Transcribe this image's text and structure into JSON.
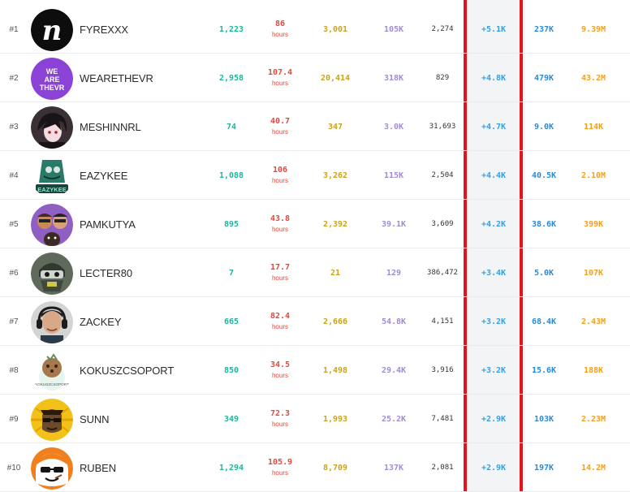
{
  "colors": {
    "followers": "#1fb59a",
    "hours": "#e5473a",
    "peak": "#c9a41a",
    "avg": "#a18dd1",
    "gain": "#3a9fe0",
    "follow_total": "#2c8ad5",
    "views": "#f0a020",
    "highlight": "#e1151c"
  },
  "hours_label": "hours",
  "rows": [
    {
      "rank": "#1",
      "name": "FYREXXX",
      "avatar_icon": "fyrexxx-logo-icon",
      "followers": "1,223",
      "hours": "86",
      "peak": "3,001",
      "avg": "105K",
      "position": "2,274",
      "gain": "+5.1K",
      "follow_total": "237K",
      "views": "9.39M"
    },
    {
      "rank": "#2",
      "name": "WEARETHEVR",
      "avatar_icon": "wearethevr-logo-icon",
      "avatar_text": "WE ARE THEVR",
      "followers": "2,958",
      "hours": "107.4",
      "peak": "20,414",
      "avg": "318K",
      "position": "829",
      "gain": "+4.8K",
      "follow_total": "479K",
      "views": "43.2M"
    },
    {
      "rank": "#3",
      "name": "MESHINNRL",
      "avatar_icon": "anime-character-avatar-icon",
      "followers": "74",
      "hours": "40.7",
      "peak": "347",
      "avg": "3.0K",
      "position": "31,693",
      "gain": "+4.7K",
      "follow_total": "9.0K",
      "views": "114K"
    },
    {
      "rank": "#4",
      "name": "EAZYKEE",
      "avatar_icon": "eazykee-logo-icon",
      "avatar_text": "EAZYKEE",
      "followers": "1,088",
      "hours": "106",
      "peak": "3,262",
      "avg": "115K",
      "position": "2,504",
      "gain": "+4.4K",
      "follow_total": "40.5K",
      "views": "2.10M"
    },
    {
      "rank": "#5",
      "name": "PAMKUTYA",
      "avatar_icon": "duo-cartoon-avatar-icon",
      "followers": "895",
      "hours": "43.8",
      "peak": "2,392",
      "avg": "39.1K",
      "position": "3,609",
      "gain": "+4.2K",
      "follow_total": "38.6K",
      "views": "399K"
    },
    {
      "rank": "#6",
      "name": "LECTER80",
      "avatar_icon": "masked-soldier-avatar-icon",
      "followers": "7",
      "hours": "17.7",
      "peak": "21",
      "avg": "129",
      "position": "386,472",
      "gain": "+3.4K",
      "follow_total": "5.0K",
      "views": "107K"
    },
    {
      "rank": "#7",
      "name": "ZACKEY",
      "avatar_icon": "headset-person-avatar-icon",
      "followers": "665",
      "hours": "82.4",
      "peak": "2,666",
      "avg": "54.8K",
      "position": "4,151",
      "gain": "+3.2K",
      "follow_total": "68.4K",
      "views": "2.43M"
    },
    {
      "rank": "#8",
      "name": "KOKUSZCSOPORT",
      "avatar_icon": "kokuszcsoport-logo-icon",
      "avatar_text": "KOKUSZCSOPORT",
      "followers": "850",
      "hours": "34.5",
      "peak": "1,498",
      "avg": "29.4K",
      "position": "3,916",
      "gain": "+3.2K",
      "follow_total": "15.6K",
      "views": "188K"
    },
    {
      "rank": "#9",
      "name": "SUNN",
      "avatar_icon": "sunglasses-cartoon-avatar-icon",
      "followers": "349",
      "hours": "72.3",
      "peak": "1,993",
      "avg": "25.2K",
      "position": "7,481",
      "gain": "+2.9K",
      "follow_total": "103K",
      "views": "2.23M"
    },
    {
      "rank": "#10",
      "name": "RUBEN",
      "avatar_icon": "orange-cartoon-avatar-icon",
      "followers": "1,294",
      "hours": "105.9",
      "peak": "8,709",
      "avg": "137K",
      "position": "2,081",
      "gain": "+2.9K",
      "follow_total": "197K",
      "views": "14.2M"
    }
  ]
}
